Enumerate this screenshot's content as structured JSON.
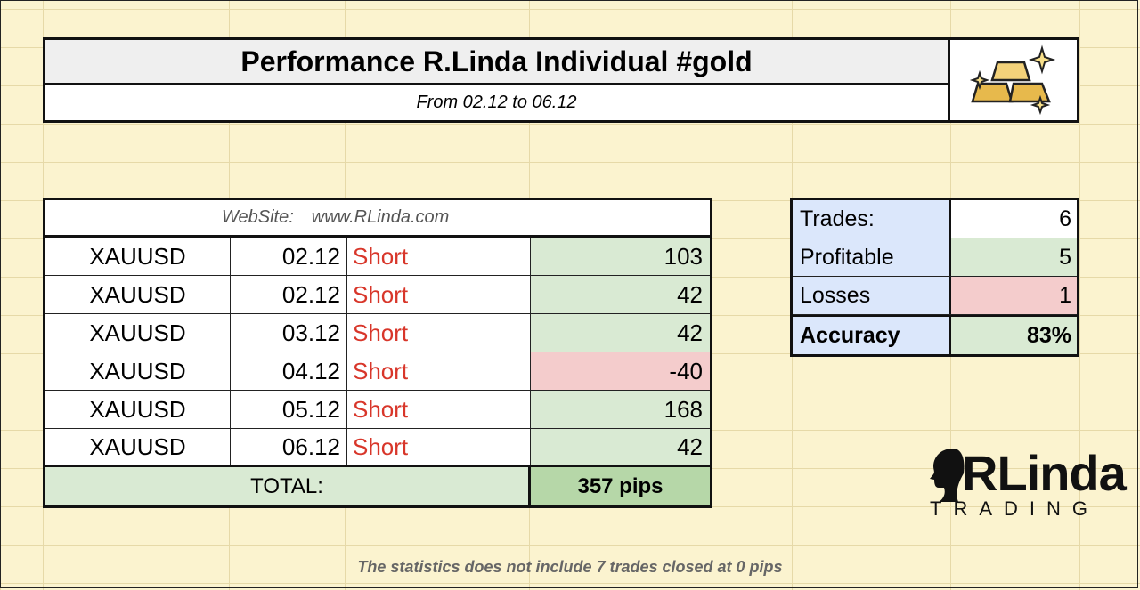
{
  "header": {
    "title": "Performance R.Linda Individual #gold",
    "subtitle": "From 02.12 to 06.12",
    "logo_icon": "gold-bars-sparkle-icon"
  },
  "trades_table": {
    "website_label": "WebSite:",
    "website_url": "www.RLinda.com",
    "rows": [
      {
        "symbol": "XAUUSD",
        "date": "02.12",
        "direction": "Short",
        "pips": "103",
        "result": "win"
      },
      {
        "symbol": "XAUUSD",
        "date": "02.12",
        "direction": "Short",
        "pips": "42",
        "result": "win"
      },
      {
        "symbol": "XAUUSD",
        "date": "03.12",
        "direction": "Short",
        "pips": "42",
        "result": "win"
      },
      {
        "symbol": "XAUUSD",
        "date": "04.12",
        "direction": "Short",
        "pips": "-40",
        "result": "loss"
      },
      {
        "symbol": "XAUUSD",
        "date": "05.12",
        "direction": "Short",
        "pips": "168",
        "result": "win"
      },
      {
        "symbol": "XAUUSD",
        "date": "06.12",
        "direction": "Short",
        "pips": "42",
        "result": "win"
      }
    ],
    "total_label": "TOTAL:",
    "total_value": "357 pips"
  },
  "stats_table": {
    "trades_label": "Trades:",
    "trades_value": "6",
    "profitable_label": "Profitable",
    "profitable_value": "5",
    "losses_label": "Losses",
    "losses_value": "1",
    "accuracy_label": "Accuracy",
    "accuracy_value": "83%"
  },
  "brand": {
    "name": "RLinda",
    "tagline": "TRADING"
  },
  "footnote": "The statistics does not include 7 trades closed at 0 pips",
  "colors": {
    "background": "#fbf3cf",
    "win_fill": "#d9ead3",
    "loss_fill": "#f4cccc",
    "total_fill": "#b6d7a8",
    "stats_label_fill": "#dbe7fb",
    "short_text": "#d8362a"
  }
}
